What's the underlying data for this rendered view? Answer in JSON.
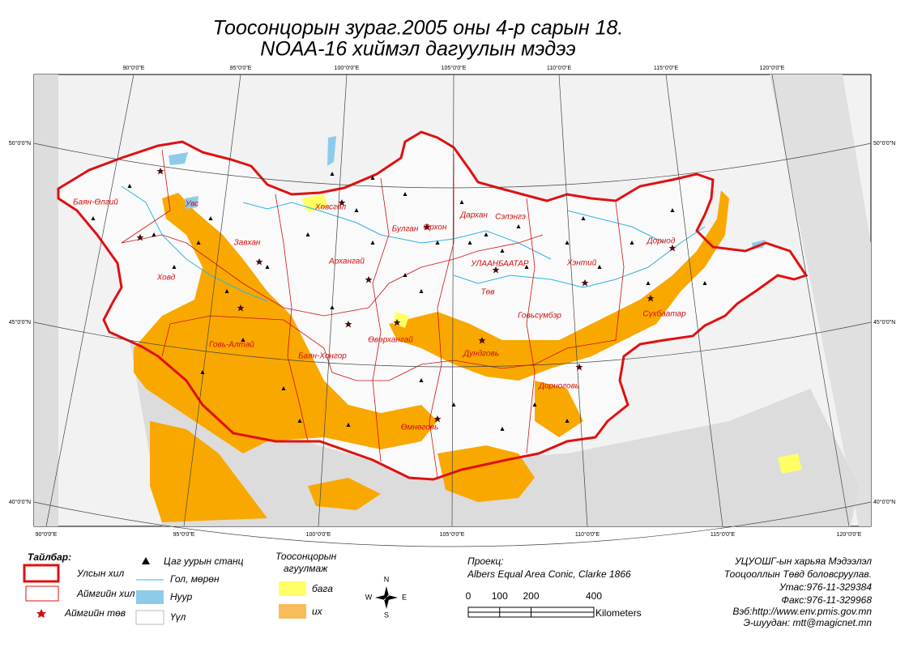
{
  "title": [
    "Тоосонцорын зураг.2005 оны 4-р сарын 18.",
    "NOAA-16 хиймэл дагуулын мэдээ"
  ],
  "graticule": {
    "top": [
      "90°0'0\"E",
      "95°0'0\"E",
      "100°0'0\"E",
      "105°0'0\"E",
      "110°0'0\"E",
      "115°0'0\"E",
      "120°0'0\"E"
    ],
    "bottom": [
      "90°0'0\"E",
      "95°0'0\"E",
      "100°0'0\"E",
      "105°0'0\"E",
      "110°0'0\"E",
      "115°0'0\"E",
      "120°0'0\"E"
    ],
    "left": [
      "50°0'0\"N",
      "45°0'0\"N",
      "40°0'0\"N"
    ],
    "right": [
      "50°0'0\"N",
      "45°0'0\"N",
      "40°0'0\"N"
    ]
  },
  "provinces": [
    "Баян-Өлгий",
    "Увс",
    "Ховд",
    "Завхан",
    "Говь-Алтай",
    "Хөвсгөл",
    "Архангай",
    "Баян-Хонгор",
    "Булган",
    "Орхон",
    "Дархан",
    "Сэлэнгэ",
    "УЛААНБААТАР",
    "Төв",
    "Хэнтий",
    "Дорнод",
    "Говьсүмбэр",
    "Сүхбаатар",
    "Өвөрхангай",
    "Дундговь",
    "Дорноговь",
    "Өмнөговь"
  ],
  "legend": {
    "title": "Тайлбар:",
    "items": [
      "Улсын хил",
      "Аймгийн хил",
      "Аймгийн төв",
      "Цаг уурын станц",
      "Гол, мөрөн",
      "Нуур",
      "Үүл"
    ]
  },
  "dust_legend": {
    "title": [
      "Тоосонцорын",
      "агуулмаж"
    ],
    "items": [
      "бага",
      "их"
    ]
  },
  "compass": [
    "N",
    "W",
    "E",
    "S"
  ],
  "projection": [
    "Проекц:",
    "Albers Equal Area Conic, Clarke 1866"
  ],
  "scale": {
    "ticks": [
      0,
      100,
      200,
      400
    ],
    "unit": "Kilometers"
  },
  "credits": [
    "УЦУОШГ-ын харьяа Мэдээлэл",
    "Тооцооллын Төвд боловсруулав.",
    "Утас:976-11-329384",
    "Факс:976-11-329968",
    "Вэб:http://www.env.pmis.gov.mn",
    "Э-шуудан: mtt@magicnet.mn"
  ]
}
